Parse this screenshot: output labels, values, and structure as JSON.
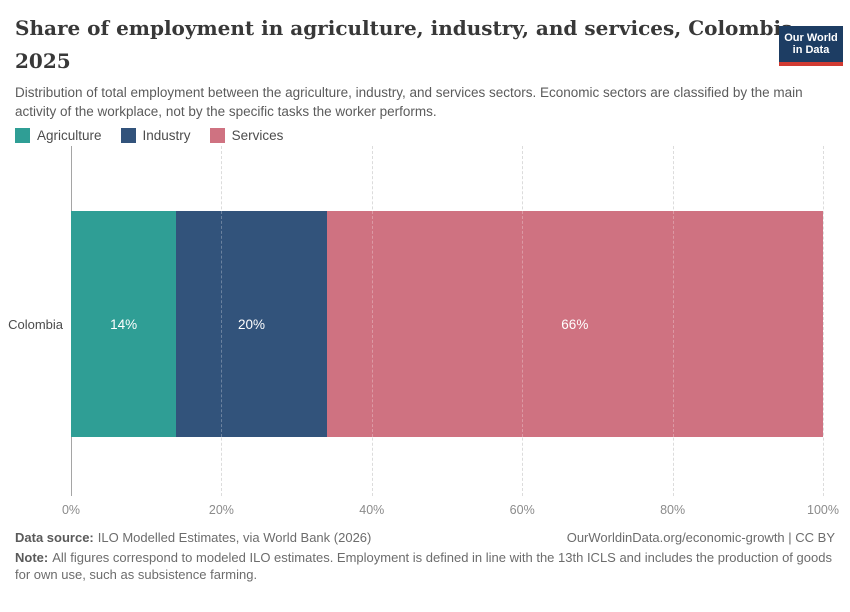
{
  "logo": {
    "line1": "Our World",
    "line2": "in Data",
    "bg_color": "#1d3d63",
    "accent_color": "#d13b32"
  },
  "chart_data": {
    "type": "bar",
    "orientation": "horizontal",
    "stacked": true,
    "title": "Share of employment in agriculture, industry, and services, Colombia, 2025",
    "title_lines": [
      "Share of employment in agriculture, industry, and services, Colombia,",
      "2025"
    ],
    "subtitle": "Distribution of total employment between the agriculture, industry, and services sectors. Economic sectors are classified by the main activity of the workplace, not by the specific tasks the worker performs.",
    "categories": [
      "Colombia"
    ],
    "series": [
      {
        "name": "Agriculture",
        "values": [
          14
        ],
        "label": "14%",
        "color": "#2f9e95"
      },
      {
        "name": "Industry",
        "values": [
          20
        ],
        "label": "20%",
        "color": "#32537b"
      },
      {
        "name": "Services",
        "values": [
          66
        ],
        "label": "66%",
        "color": "#cf7281"
      }
    ],
    "xlabel": "",
    "ylabel": "",
    "xlim": [
      0,
      100
    ],
    "x_ticks": [
      "0%",
      "20%",
      "40%",
      "60%",
      "80%",
      "100%"
    ],
    "grid": "vertical-dashed",
    "legend_position": "top-left"
  },
  "footer": {
    "datasource_label": "Data source:",
    "datasource_text": "ILO Modelled Estimates, via World Bank (2026)",
    "rights_text": "OurWorldinData.org/economic-growth | CC BY",
    "note_label": "Note:",
    "note_text": "All figures correspond to modeled ILO estimates. Employment is defined in line with the 13th ICLS and includes the production of goods for own use, such as subsistence farming."
  }
}
